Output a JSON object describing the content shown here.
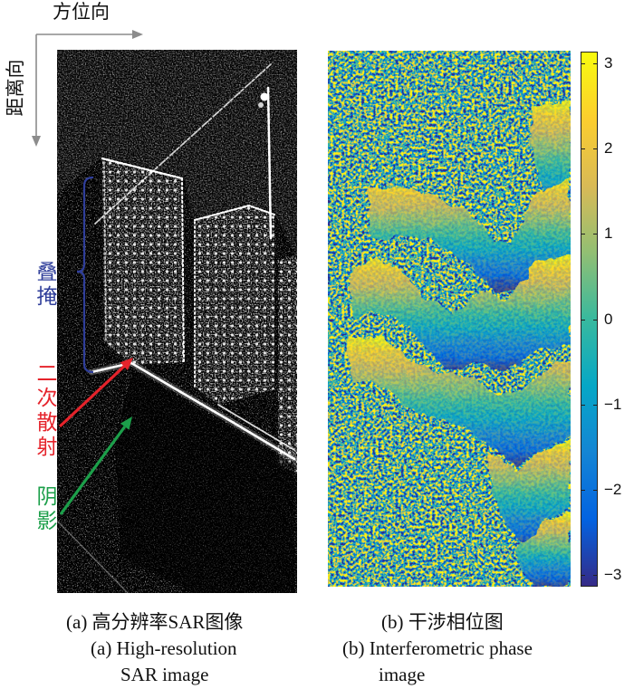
{
  "axis_labels": {
    "azimuth": "方位向",
    "range": "距离向"
  },
  "annotations": {
    "layover": "叠掩",
    "double_bounce": "二次散射",
    "shadow": "阴影"
  },
  "colors": {
    "axis_arrow": "#8c8c8c",
    "layover": "#2f3e9a",
    "double_bounce": "#e5232b",
    "shadow": "#1c9f4a"
  },
  "colorbar": {
    "range": [
      -3.1416,
      3.1416
    ],
    "colormap": [
      "#352a87",
      "#0363e1",
      "#1485d4",
      "#06a7c6",
      "#38b99e",
      "#92bf73",
      "#d9ba56",
      "#fcce2e",
      "#f9fb0e"
    ],
    "ticks": [
      {
        "value": 3,
        "label": "3"
      },
      {
        "value": 2,
        "label": "2"
      },
      {
        "value": 1,
        "label": "1"
      },
      {
        "value": 0,
        "label": "0"
      },
      {
        "value": -1,
        "label": "−1"
      },
      {
        "value": -2,
        "label": "−2"
      },
      {
        "value": -3,
        "label": "−3"
      }
    ]
  },
  "captions": {
    "a": {
      "zh": "(a) 高分辨率SAR图像",
      "en": [
        "(a) High-resolution",
        "SAR image"
      ]
    },
    "b": {
      "zh": "(b) 干涉相位图",
      "en": [
        "(b) Interferometric phase",
        "image"
      ]
    }
  }
}
